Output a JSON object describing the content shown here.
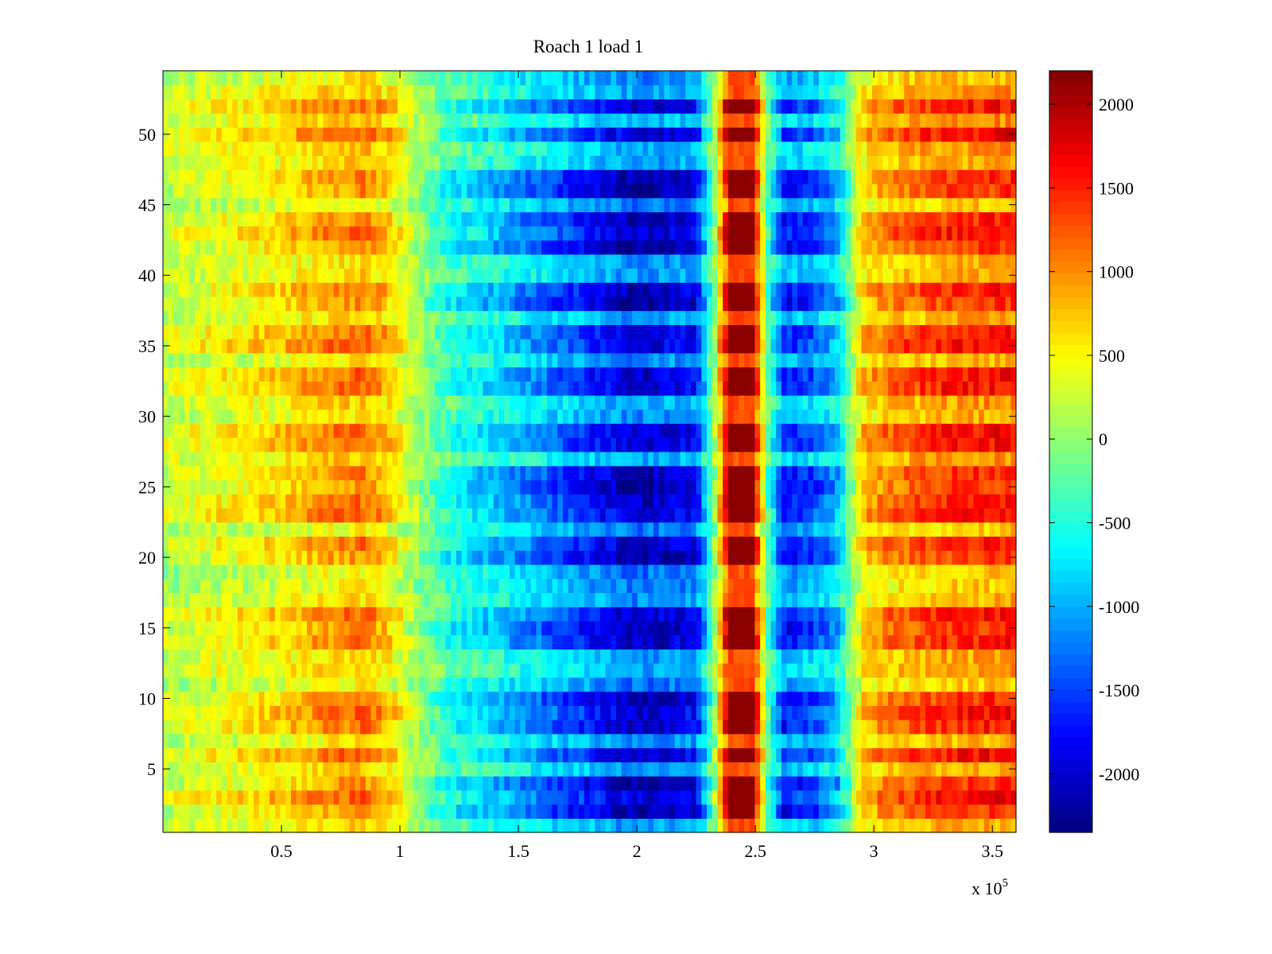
{
  "chart_data": {
    "type": "heatmap",
    "title": "Roach 1 load 1",
    "xlabel": "",
    "ylabel": "",
    "x_multiplier": "x 10",
    "x_multiplier_exponent": "5",
    "xlim": [
      0,
      360000
    ],
    "ylim": [
      0.5,
      54.5
    ],
    "x_ticks": [
      {
        "value": 50000,
        "label": "0.5"
      },
      {
        "value": 100000,
        "label": "1"
      },
      {
        "value": 150000,
        "label": "1.5"
      },
      {
        "value": 200000,
        "label": "2"
      },
      {
        "value": 250000,
        "label": "2.5"
      },
      {
        "value": 300000,
        "label": "3"
      },
      {
        "value": 350000,
        "label": "3.5"
      }
    ],
    "y_ticks": [
      {
        "value": 5,
        "label": "5"
      },
      {
        "value": 10,
        "label": "10"
      },
      {
        "value": 15,
        "label": "15"
      },
      {
        "value": 20,
        "label": "20"
      },
      {
        "value": 25,
        "label": "25"
      },
      {
        "value": 30,
        "label": "30"
      },
      {
        "value": 35,
        "label": "35"
      },
      {
        "value": 40,
        "label": "40"
      },
      {
        "value": 45,
        "label": "45"
      },
      {
        "value": 50,
        "label": "50"
      }
    ],
    "rows": 54,
    "colormap": "jet",
    "colorbar": {
      "clim": [
        -2350,
        2200
      ],
      "ticks": [
        {
          "value": 2000,
          "label": "2000"
        },
        {
          "value": 1500,
          "label": "1500"
        },
        {
          "value": 1000,
          "label": "1000"
        },
        {
          "value": 500,
          "label": "500"
        },
        {
          "value": 0,
          "label": "0"
        },
        {
          "value": -500,
          "label": "-500"
        },
        {
          "value": -1000,
          "label": "-1000"
        },
        {
          "value": -1500,
          "label": "-1500"
        },
        {
          "value": -2000,
          "label": "-2000"
        }
      ]
    },
    "profile_x": [
      0,
      20000,
      50000,
      70000,
      85000,
      95000,
      105000,
      120000,
      150000,
      175000,
      200000,
      225000,
      232000,
      240000,
      248000,
      255000,
      262000,
      275000,
      285000,
      295000,
      305000,
      330000,
      360000
    ],
    "profile_values": [
      200,
      350,
      550,
      800,
      900,
      650,
      150,
      -450,
      -900,
      -1300,
      -1700,
      -1500,
      -200,
      2100,
      2100,
      -200,
      -1400,
      -1200,
      -800,
      600,
      900,
      1150,
      1250
    ],
    "strong_rows": [
      2,
      3,
      4,
      6,
      8,
      9,
      10,
      14,
      15,
      16,
      20,
      21,
      23,
      24,
      25,
      26,
      28,
      29,
      32,
      33,
      35,
      36,
      38,
      39,
      42,
      43,
      44,
      46,
      47,
      50,
      52
    ]
  }
}
